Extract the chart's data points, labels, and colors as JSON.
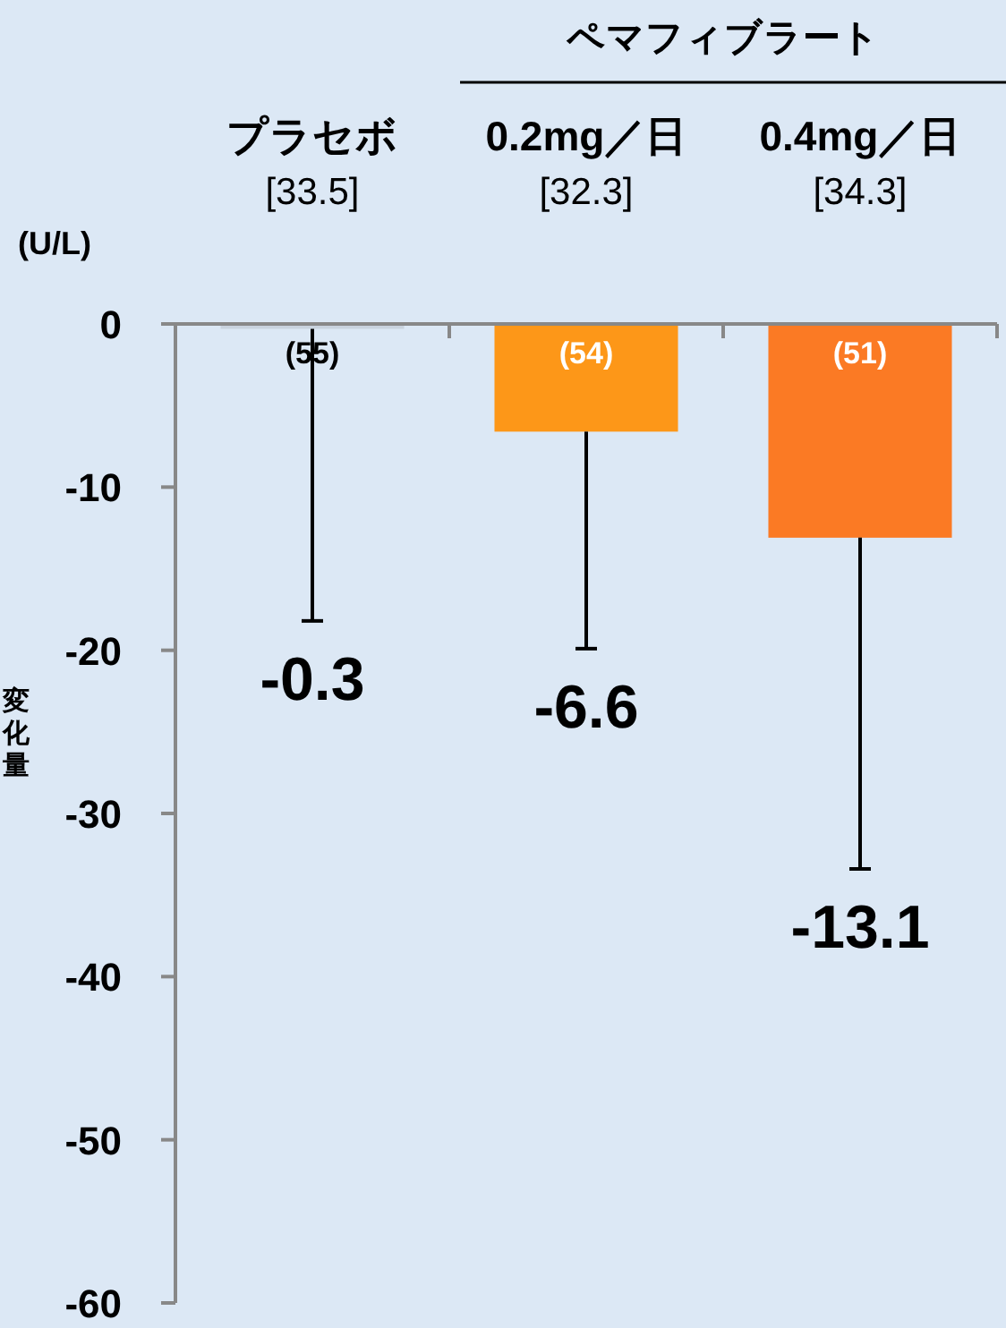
{
  "chart_data": {
    "type": "bar",
    "categories": [
      "プラセボ\n[33.5]",
      "0.2mg／日\n[32.3]",
      "0.4mg／日\n[34.3]"
    ],
    "values": [
      -0.3,
      -6.6,
      -13.1
    ],
    "colors": [
      "#c9d3de",
      "#fd9718",
      "#fb7a24"
    ],
    "errors": [
      [
        -18.2,
        -0.3
      ],
      [
        -19.9,
        -6.6
      ],
      [
        -33.4,
        -13.1
      ]
    ],
    "ylabel": "変化量",
    "ylim": [
      -60,
      0
    ],
    "yticks": [
      0,
      -10,
      -20,
      -30,
      -40,
      -50,
      -60
    ],
    "annotations": [
      "ペマフィブラート",
      "(U/L)",
      "(55)",
      "(54)",
      "(51)",
      {
        "text": "-0.3",
        "x": "プラセボ\n[33.5]",
        "y": -18.2
      },
      {
        "text": "-6.6",
        "x": "0.2mg／日\n[32.3]",
        "y": -19.9
      },
      {
        "text": "-13.1",
        "x": "0.4mg／日\n[34.3]",
        "y": -33.4
      }
    ]
  }
}
